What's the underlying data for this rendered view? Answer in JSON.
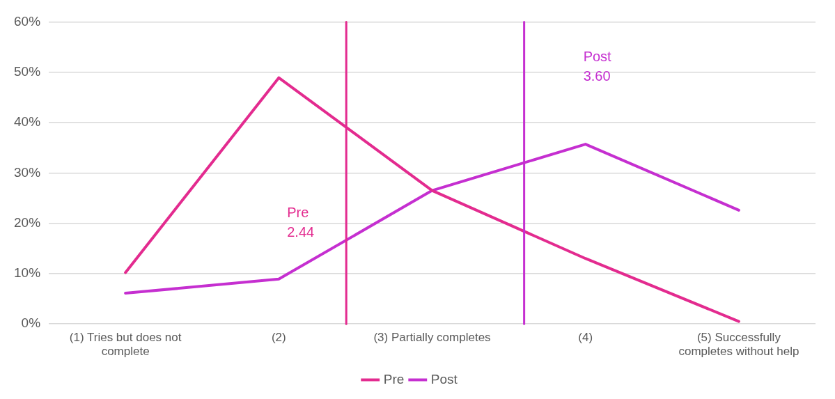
{
  "chart_data": {
    "type": "line",
    "x": [
      1,
      2,
      3,
      4,
      5
    ],
    "xlim": [
      0.5,
      5.5
    ],
    "xticks": [
      {
        "value": 1,
        "label": "(1) Tries but does not complete"
      },
      {
        "value": 2,
        "label": "(2)"
      },
      {
        "value": 3,
        "label": "(3) Partially completes"
      },
      {
        "value": 4,
        "label": "(4)"
      },
      {
        "value": 5,
        "label": "(5) Successfully completes without help"
      }
    ],
    "series": [
      {
        "name": "Pre",
        "color": "#e32b8f",
        "values": [
          10.2,
          48.9,
          26.5,
          13.0,
          0.5
        ]
      },
      {
        "name": "Post",
        "color": "#c52fd0",
        "values": [
          6.1,
          8.9,
          26.5,
          35.7,
          22.6
        ]
      }
    ],
    "ylim": [
      0,
      60
    ],
    "yticks": [
      {
        "value": 0,
        "label": "0%"
      },
      {
        "value": 10,
        "label": "10%"
      },
      {
        "value": 20,
        "label": "20%"
      },
      {
        "value": 30,
        "label": "30%"
      },
      {
        "value": 40,
        "label": "40%"
      },
      {
        "value": 50,
        "label": "50%"
      },
      {
        "value": 60,
        "label": "60%"
      }
    ],
    "grid": "y",
    "legend": "bottom",
    "marker": "none",
    "line_style": "solid",
    "ref_lines": [
      {
        "axis": "x",
        "value": 2.44,
        "label": "Pre\n2.44",
        "color": "#e32b8f"
      },
      {
        "axis": "x",
        "value": 3.6,
        "label": "Post\n3.60",
        "color": "#c52fd0"
      }
    ]
  }
}
